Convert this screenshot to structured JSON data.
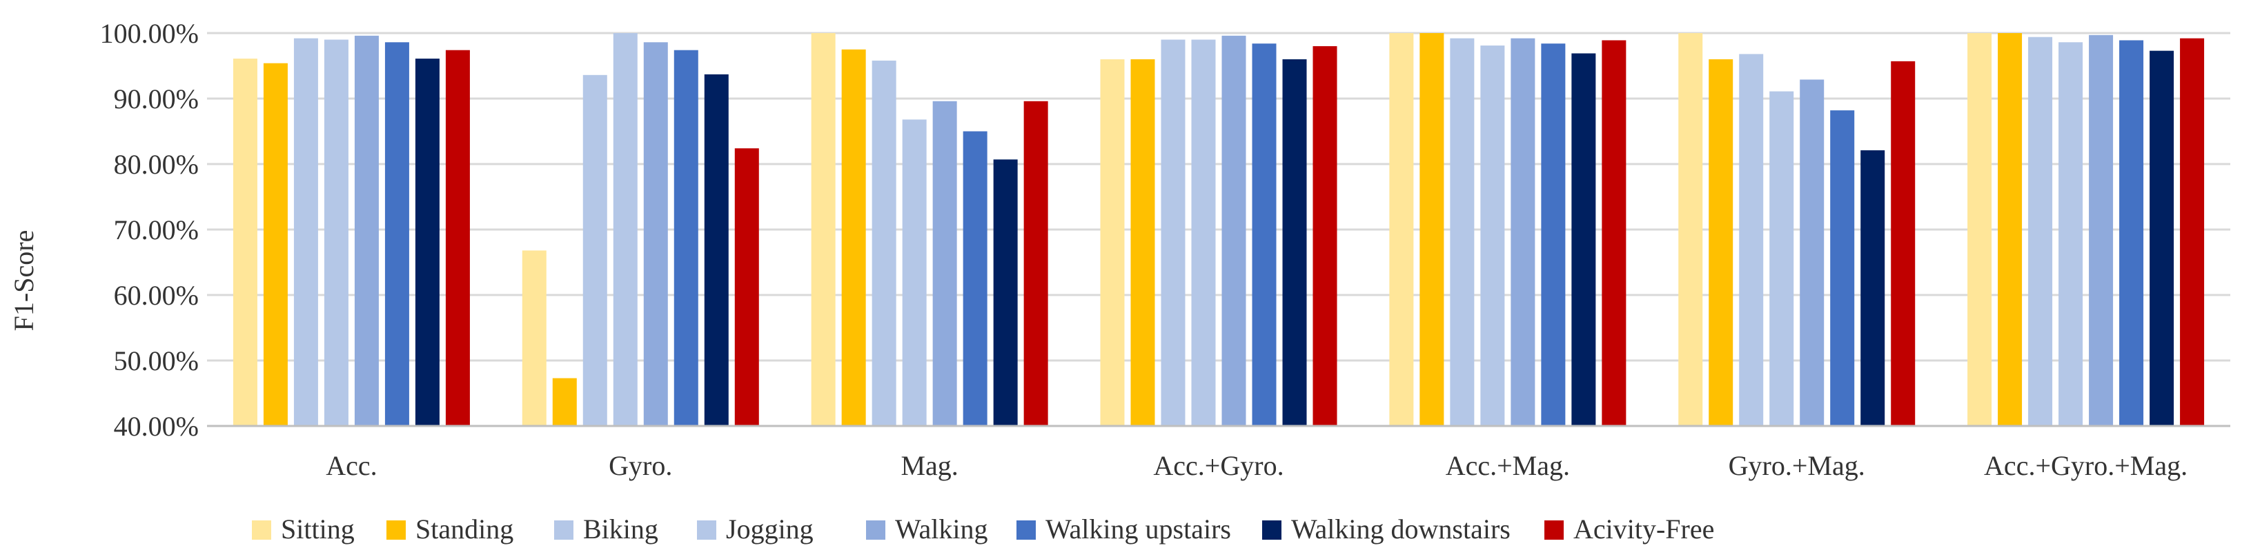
{
  "chart_data": {
    "type": "bar",
    "title": "",
    "xlabel": "",
    "ylabel": "F1-Score",
    "ylim": [
      40,
      100
    ],
    "ytick_values": [
      40,
      50,
      60,
      70,
      80,
      90,
      100
    ],
    "ytick_labels": [
      "40.00%",
      "50.00%",
      "60.00%",
      "70.00%",
      "80.00%",
      "90.00%",
      "100.00%"
    ],
    "grid": true,
    "legend_position": "bottom",
    "categories": [
      "Acc.",
      "Gyro.",
      "Mag.",
      "Acc.+Gyro.",
      "Acc.+Mag.",
      "Gyro.+Mag.",
      "Acc.+Gyro.+Mag."
    ],
    "series": [
      {
        "name": "Sitting",
        "color": "#FFE699",
        "values": [
          96.1,
          66.8,
          100.0,
          96.0,
          100.0,
          100.0,
          100.0
        ]
      },
      {
        "name": "Standing",
        "color": "#FFC000",
        "values": [
          95.4,
          47.3,
          97.5,
          96.0,
          100.0,
          96.0,
          100.0
        ]
      },
      {
        "name": "Biking",
        "color": "#B4C7E7",
        "values": [
          99.2,
          93.6,
          95.8,
          99.0,
          99.2,
          96.8,
          99.4
        ]
      },
      {
        "name": "Jogging",
        "color": "#B4C7E7",
        "values": [
          99.0,
          100.0,
          86.8,
          99.0,
          98.1,
          91.1,
          98.6
        ]
      },
      {
        "name": "Walking",
        "color": "#8FAADC",
        "values": [
          99.6,
          98.6,
          89.6,
          99.6,
          99.2,
          92.9,
          99.7
        ]
      },
      {
        "name": "Walking upstairs",
        "color": "#4472C4",
        "values": [
          98.6,
          97.4,
          85.0,
          98.4,
          98.4,
          88.2,
          98.9
        ]
      },
      {
        "name": "Walking downstairs",
        "color": "#002060",
        "values": [
          96.1,
          93.7,
          80.7,
          96.0,
          96.9,
          82.1,
          97.3
        ]
      },
      {
        "name": "Acivity-Free",
        "color": "#C00000",
        "values": [
          97.4,
          82.4,
          89.6,
          98.0,
          98.9,
          95.7,
          99.2
        ]
      }
    ]
  }
}
